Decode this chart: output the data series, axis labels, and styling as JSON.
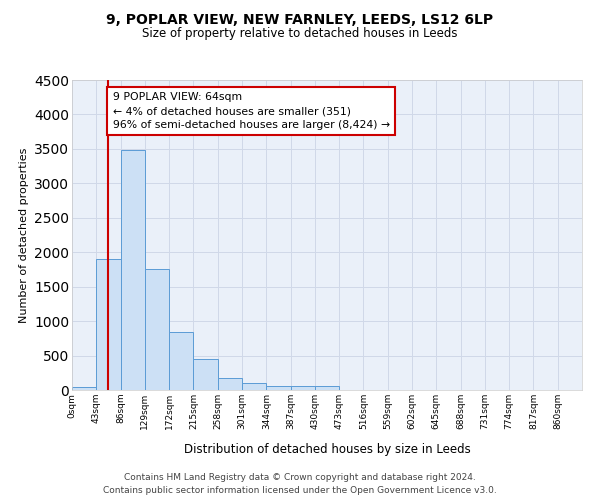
{
  "title1": "9, POPLAR VIEW, NEW FARNLEY, LEEDS, LS12 6LP",
  "title2": "Size of property relative to detached houses in Leeds",
  "xlabel": "Distribution of detached houses by size in Leeds",
  "ylabel": "Number of detached properties",
  "bin_labels": [
    "0sqm",
    "43sqm",
    "86sqm",
    "129sqm",
    "172sqm",
    "215sqm",
    "258sqm",
    "301sqm",
    "344sqm",
    "387sqm",
    "430sqm",
    "473sqm",
    "516sqm",
    "559sqm",
    "602sqm",
    "645sqm",
    "688sqm",
    "731sqm",
    "774sqm",
    "817sqm",
    "860sqm"
  ],
  "bar_heights": [
    50,
    1900,
    3490,
    1760,
    840,
    450,
    175,
    100,
    65,
    55,
    60,
    0,
    0,
    0,
    0,
    0,
    0,
    0,
    0,
    0
  ],
  "bar_color": "#cce0f5",
  "bar_edge_color": "#5b9bd5",
  "grid_color": "#d0d8e8",
  "background_color": "#eaf0f9",
  "vline_x": 64,
  "vline_color": "#cc0000",
  "annotation_text": "9 POPLAR VIEW: 64sqm\n← 4% of detached houses are smaller (351)\n96% of semi-detached houses are larger (8,424) →",
  "annotation_box_color": "#ffffff",
  "annotation_box_edge": "#cc0000",
  "footnote1": "Contains HM Land Registry data © Crown copyright and database right 2024.",
  "footnote2": "Contains public sector information licensed under the Open Government Licence v3.0.",
  "ylim": [
    0,
    4500
  ],
  "bin_width": 43
}
